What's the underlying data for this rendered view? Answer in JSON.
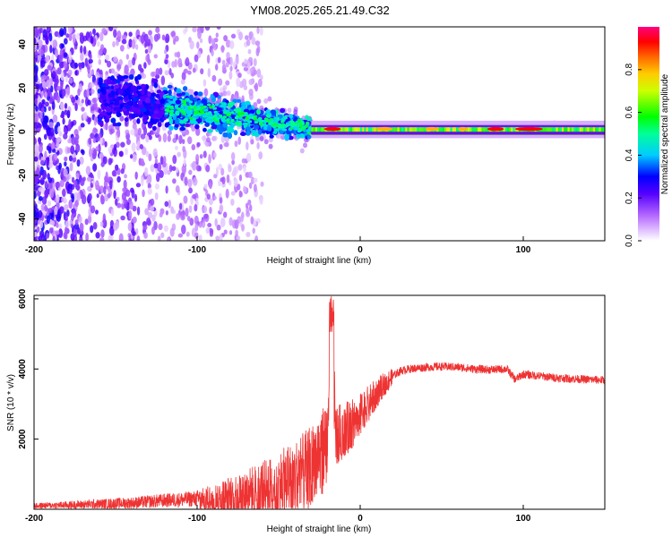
{
  "title": "YM08.2025.265.21.49.C32",
  "chart_data": [
    {
      "type": "heatmap",
      "title": "YM08.2025.265.21.49.C32",
      "xlabel": "Height of straight line (km)",
      "ylabel": "Frequency (Hz)",
      "xlim": [
        -200,
        150
      ],
      "ylim": [
        -50,
        48
      ],
      "xticks": [
        -200,
        -100,
        0,
        100
      ],
      "yticks": [
        -40,
        -20,
        0,
        20,
        40
      ],
      "colorbar": {
        "label": "Normalized spectral amplitude",
        "range": [
          0,
          1
        ],
        "ticks": [
          "0.0",
          "0.2",
          "0.4",
          "0.6",
          "0.8"
        ],
        "colors": [
          "#ffffff",
          "#cc99ff",
          "#6600ff",
          "#0000ff",
          "#00ffff",
          "#00ff00",
          "#ffff00",
          "#ff8000",
          "#ff0000",
          "#ff0080"
        ]
      },
      "features": [
        {
          "x_range": [
            -200,
            -150
          ],
          "freq_range": [
            -50,
            48
          ],
          "amplitude": [
            0.1,
            0.25
          ]
        },
        {
          "x_range": [
            -150,
            -30
          ],
          "freq_center": [
            15,
            0
          ],
          "freq_spread": [
            10,
            4
          ],
          "amplitude": [
            0.2,
            0.5
          ]
        },
        {
          "x_range": [
            -30,
            150
          ],
          "freq_center": [
            1,
            1
          ],
          "freq_spread": [
            1,
            1
          ],
          "amplitude": [
            0.6,
            0.95
          ]
        }
      ]
    },
    {
      "type": "line",
      "xlabel": "Height of straight line (km)",
      "ylabel": "SNR (10 * v/v)",
      "xlim": [
        -200,
        150
      ],
      "ylim": [
        0,
        6100
      ],
      "xticks": [
        -200,
        -100,
        0,
        100
      ],
      "yticks": [
        2000,
        4000,
        6000
      ],
      "color": "#ee3333",
      "series": [
        {
          "x": [
            -200,
            -180,
            -160,
            -140,
            -120,
            -100,
            -90,
            -80,
            -70,
            -60,
            -50,
            -40,
            -30,
            -25,
            -20,
            -18,
            -15,
            -10,
            -5,
            0,
            5,
            10,
            15,
            20,
            25,
            30,
            40,
            50,
            60,
            70,
            80,
            90,
            95,
            100,
            110,
            120,
            130,
            140,
            150
          ],
          "values": [
            100,
            120,
            150,
            180,
            250,
            300,
            350,
            450,
            550,
            650,
            800,
            1000,
            1300,
            1700,
            2000,
            6000,
            2200,
            2300,
            2500,
            2750,
            3050,
            3350,
            3600,
            3800,
            3950,
            4000,
            4050,
            4070,
            4050,
            4000,
            3980,
            4000,
            3700,
            3850,
            3800,
            3750,
            3720,
            3700,
            3680
          ]
        }
      ]
    }
  ]
}
